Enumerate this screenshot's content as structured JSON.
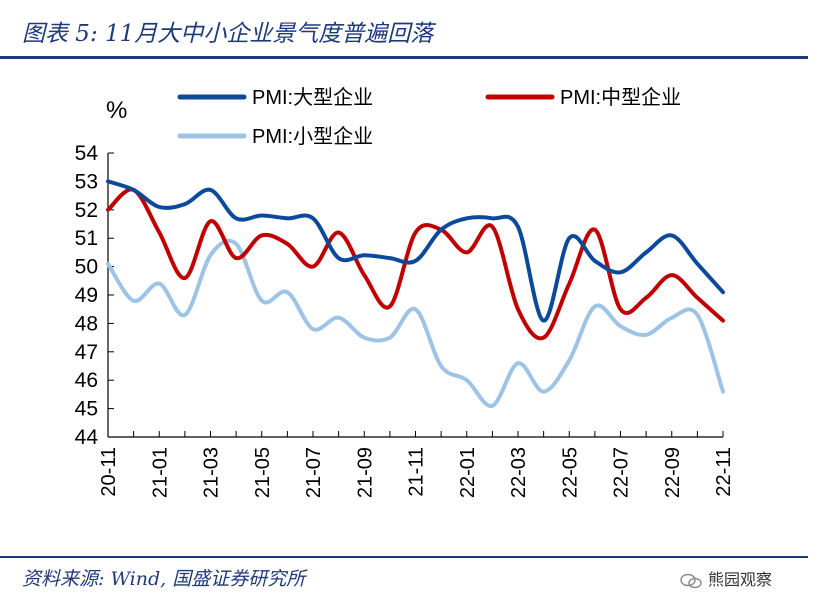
{
  "header": {
    "title": "图表 5:  11月大中小企业景气度普遍回落"
  },
  "footer": {
    "source": "资料来源: Wind, 国盛证券研究所",
    "watermark": "熊园观察"
  },
  "chart_data": {
    "type": "line",
    "unit": "%",
    "ylim": [
      44,
      54
    ],
    "yticks": [
      "44",
      "45",
      "46",
      "47",
      "48",
      "49",
      "50",
      "51",
      "52",
      "53",
      "54"
    ],
    "xtick_labels": [
      "20-11",
      "21-01",
      "21-03",
      "21-05",
      "21-07",
      "21-09",
      "21-11",
      "22-01",
      "22-03",
      "22-05",
      "22-07",
      "22-09",
      "22-11"
    ],
    "x": [
      "20-11",
      "20-12",
      "21-01",
      "21-02",
      "21-03",
      "21-04",
      "21-05",
      "21-06",
      "21-07",
      "21-08",
      "21-09",
      "21-10",
      "21-11",
      "21-12",
      "22-01",
      "22-02",
      "22-03",
      "22-04",
      "22-05",
      "22-06",
      "22-07",
      "22-08",
      "22-09",
      "22-10",
      "22-11"
    ],
    "legend_position": "top",
    "grid": false,
    "series": [
      {
        "name": "PMI:大型企业",
        "color": "#0b4a9b",
        "values": [
          53.0,
          52.7,
          52.1,
          52.2,
          52.7,
          51.7,
          51.8,
          51.7,
          51.7,
          50.3,
          50.4,
          50.3,
          50.2,
          51.3,
          51.7,
          51.7,
          51.4,
          48.1,
          51.0,
          50.2,
          49.8,
          50.5,
          51.1,
          50.1,
          49.1
        ]
      },
      {
        "name": "PMI:中型企业",
        "color": "#c00000",
        "values": [
          52.0,
          52.7,
          51.2,
          49.6,
          51.6,
          50.3,
          51.1,
          50.8,
          50.0,
          51.2,
          49.7,
          48.6,
          51.2,
          51.3,
          50.5,
          51.4,
          48.5,
          47.5,
          49.4,
          51.3,
          48.5,
          48.9,
          49.7,
          48.9,
          48.1
        ]
      },
      {
        "name": "PMI:小型企业",
        "color": "#9dc3e6",
        "values": [
          50.1,
          48.8,
          49.4,
          48.3,
          50.4,
          50.8,
          48.8,
          49.1,
          47.8,
          48.2,
          47.5,
          47.5,
          48.5,
          46.5,
          46.0,
          45.1,
          46.6,
          45.6,
          46.7,
          48.6,
          47.9,
          47.6,
          48.2,
          48.3,
          45.6
        ]
      }
    ]
  }
}
